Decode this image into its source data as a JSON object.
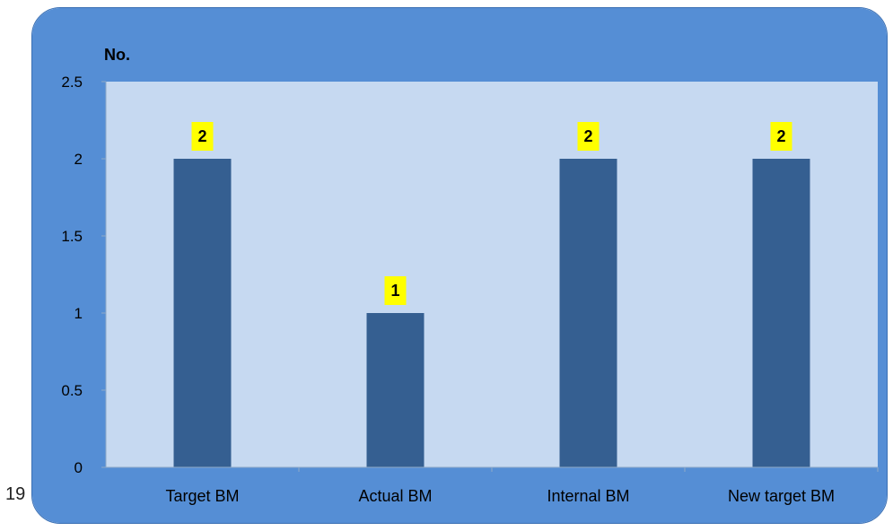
{
  "page_number": "19",
  "colors": {
    "outer_background": "#558ed5",
    "plot_background": "#c6d9f1",
    "bar": "#355f91",
    "data_label_background": "#ffff00",
    "text": "#000000"
  },
  "chart_data": {
    "type": "bar",
    "ylabel": "No.",
    "xlabel": "",
    "title": "",
    "categories": [
      "Target BM",
      "Actual BM",
      "Internal BM",
      "New target BM"
    ],
    "values": [
      2,
      1,
      2,
      2
    ],
    "data_labels": [
      "2",
      "1",
      "2",
      "2"
    ],
    "ylim": [
      0,
      2.5
    ],
    "yticks": [
      "0",
      "0.5",
      "1",
      "1.5",
      "2",
      "2.5"
    ],
    "grid": false,
    "legend": "none"
  }
}
